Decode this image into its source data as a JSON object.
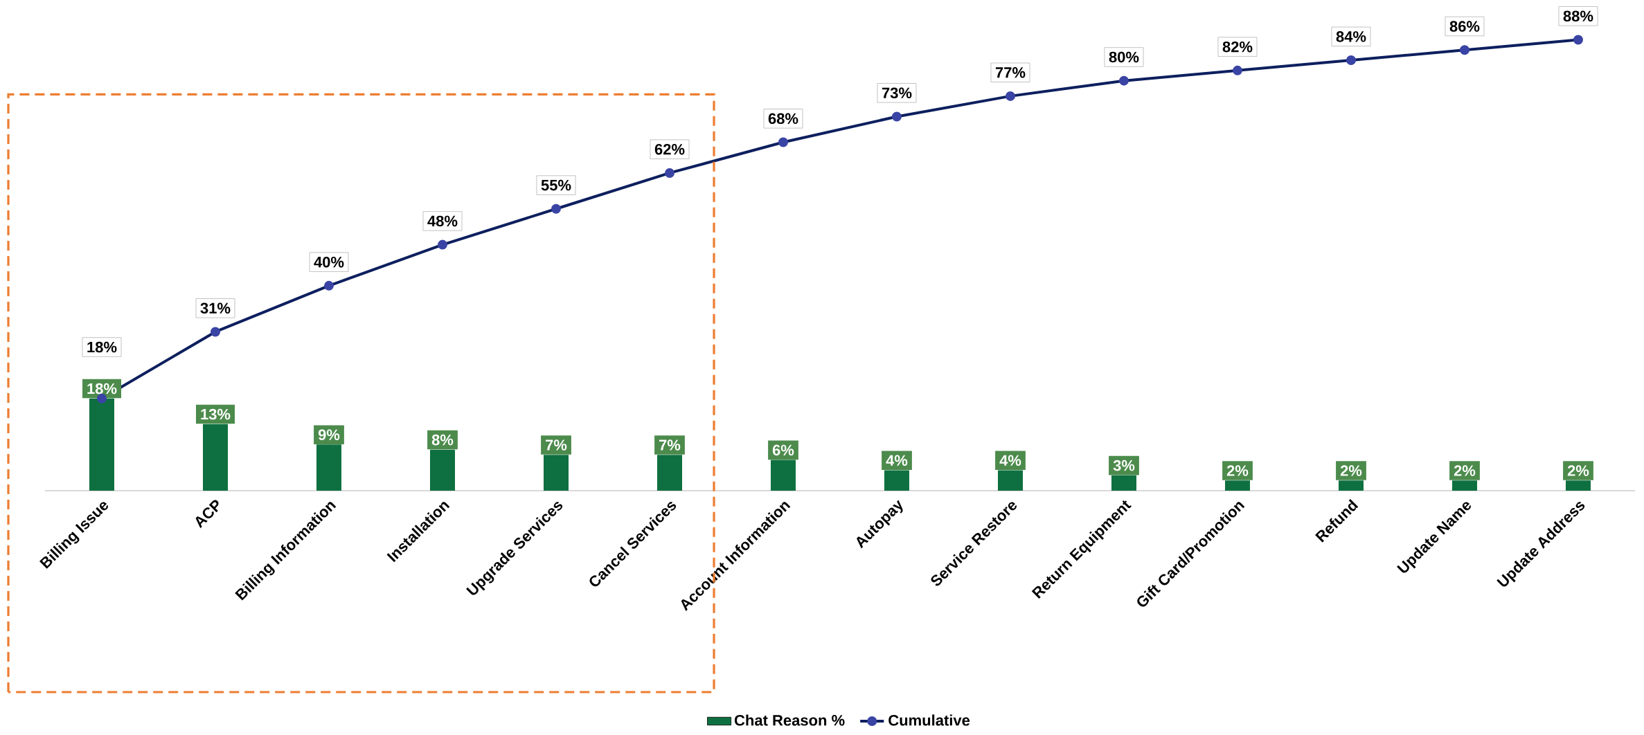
{
  "chart_data": {
    "type": "bar",
    "categories": [
      "Billing Issue",
      "ACP",
      "Billing Information",
      "Installation",
      "Upgrade Services",
      "Cancel Services",
      "Account Information",
      "Autopay",
      "Service Restore",
      "Return Equipment",
      "Gift Card/Promotion",
      "Refund",
      "Update Name",
      "Update Address"
    ],
    "ylim": [
      0,
      95
    ],
    "tick_labels": "x",
    "legend": "bottom",
    "marker": "circle",
    "series": [
      {
        "name": "Chat Reason %",
        "color": "#0e7040",
        "values": [
          18,
          13,
          9,
          8,
          7,
          7,
          6,
          4,
          4,
          3,
          2,
          2,
          2,
          2
        ],
        "value_labels": [
          "18%",
          "13%",
          "9%",
          "8%",
          "7%",
          "7%",
          "6%",
          "4%",
          "4%",
          "3%",
          "2%",
          "2%",
          "2%",
          "2%"
        ]
      },
      {
        "name": "Cumulative",
        "type": "line",
        "color": "#0d1f5e",
        "values": [
          18,
          31,
          40,
          48,
          55,
          62,
          68,
          73,
          77,
          80,
          82,
          84,
          86,
          88
        ],
        "value_labels": [
          "18%",
          "31%",
          "40%",
          "48%",
          "55%",
          "62%",
          "68%",
          "73%",
          "77%",
          "80%",
          "82%",
          "84%",
          "86%",
          "88%"
        ]
      }
    ]
  }
}
